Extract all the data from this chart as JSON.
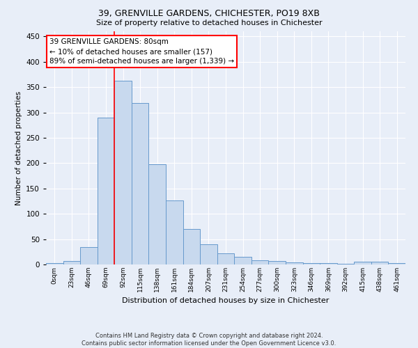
{
  "title1": "39, GRENVILLE GARDENS, CHICHESTER, PO19 8XB",
  "title2": "Size of property relative to detached houses in Chichester",
  "xlabel": "Distribution of detached houses by size in Chichester",
  "ylabel": "Number of detached properties",
  "bar_labels": [
    "0sqm",
    "23sqm",
    "46sqm",
    "69sqm",
    "92sqm",
    "115sqm",
    "138sqm",
    "161sqm",
    "184sqm",
    "207sqm",
    "231sqm",
    "254sqm",
    "277sqm",
    "300sqm",
    "323sqm",
    "346sqm",
    "369sqm",
    "392sqm",
    "415sqm",
    "438sqm",
    "461sqm"
  ],
  "bar_values": [
    3,
    7,
    35,
    290,
    362,
    318,
    198,
    127,
    70,
    40,
    22,
    15,
    8,
    7,
    4,
    3,
    3,
    2,
    6,
    5,
    3
  ],
  "bar_color": "#c8d9ee",
  "bar_edge_color": "#6699cc",
  "vline_x": 3.5,
  "vline_color": "red",
  "annotation_text": "39 GRENVILLE GARDENS: 80sqm\n← 10% of detached houses are smaller (157)\n89% of semi-detached houses are larger (1,339) →",
  "annotation_box_color": "white",
  "annotation_box_edge": "red",
  "footer": "Contains HM Land Registry data © Crown copyright and database right 2024.\nContains public sector information licensed under the Open Government Licence v3.0.",
  "ylim": [
    0,
    460
  ],
  "background_color": "#e8eef8",
  "title1_fontsize": 9,
  "title2_fontsize": 8,
  "annotation_fontsize": 7.5,
  "ylabel_fontsize": 7.5,
  "xlabel_fontsize": 8
}
